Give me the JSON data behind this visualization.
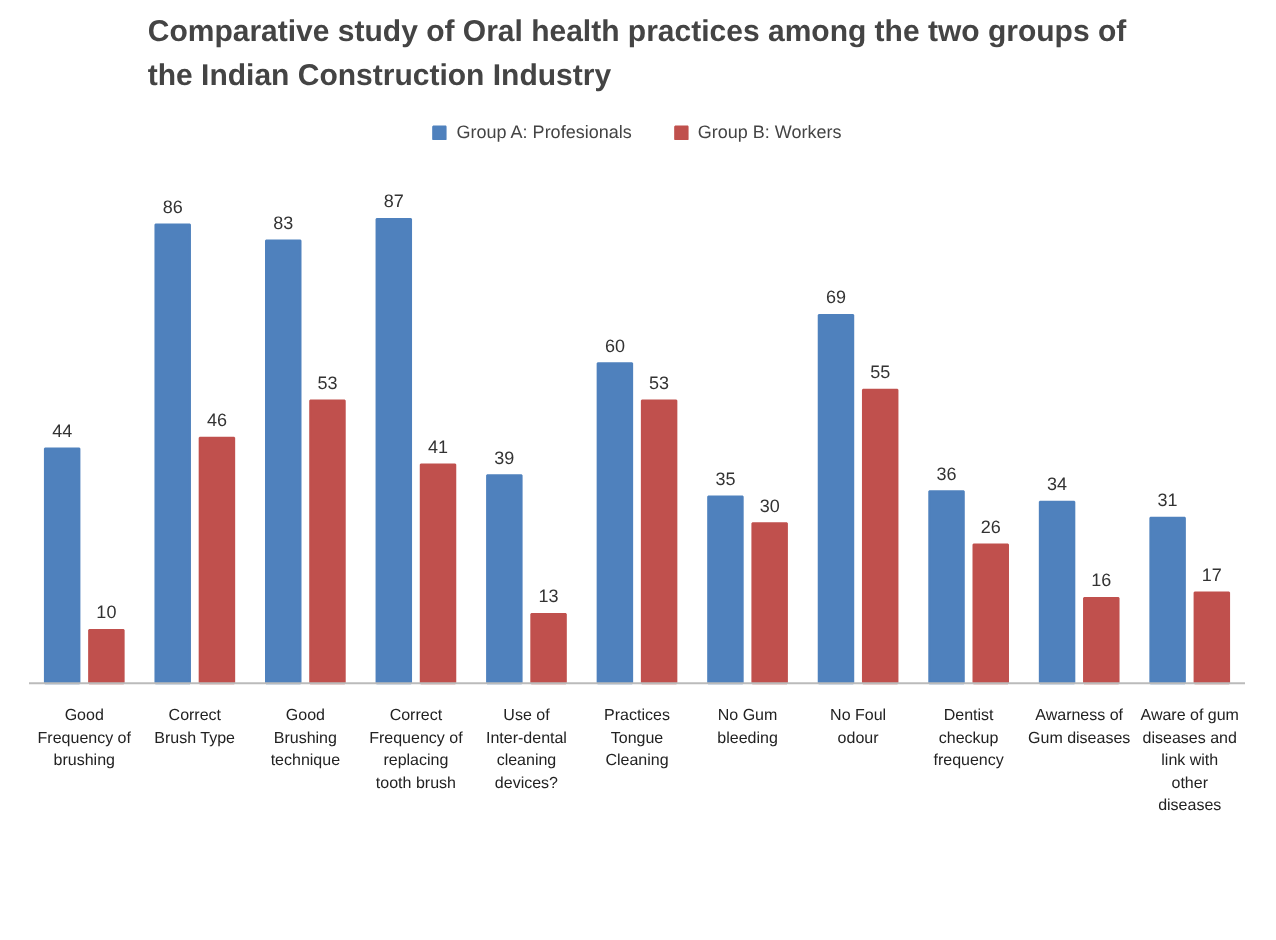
{
  "chart_data": {
    "type": "bar",
    "title": "Comparative study of Oral health practices among the two groups of the Indian Construction Industry",
    "categories": [
      "Good Frequency of brushing",
      "Correct Brush Type",
      "Good Brushing technique",
      "Correct Frequency of replacing tooth brush",
      "Use of Inter-dental cleaning devices?",
      "Practices Tongue Cleaning",
      "No Gum bleeding",
      "No Foul odour",
      "Dentist checkup frequency",
      "Awarness of Gum diseases",
      "Aware of gum diseases and link with other diseases"
    ],
    "series": [
      {
        "name": "Group A: Profesionals",
        "color": "#4f81bd",
        "values": [
          44,
          86,
          83,
          87,
          39,
          60,
          35,
          69,
          36,
          34,
          31
        ]
      },
      {
        "name": "Group B: Workers",
        "color": "#c0504d",
        "values": [
          10,
          46,
          53,
          41,
          13,
          53,
          30,
          55,
          26,
          16,
          17
        ]
      }
    ],
    "data_labels": true,
    "legend": "top",
    "grid": false
  }
}
